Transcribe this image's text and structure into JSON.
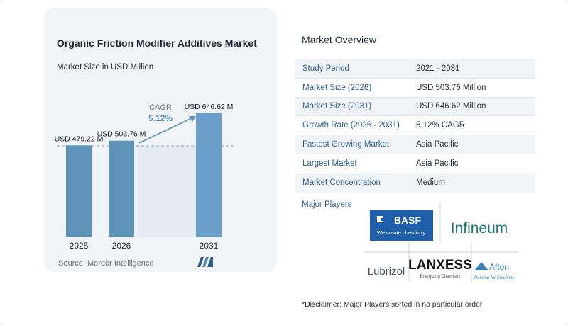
{
  "chart": {
    "title": "Organic Friction Modifier Additives Market",
    "subtitle": "Market Size in USD Million",
    "source": "Source: Mordor Intelligence",
    "cagr_label": "CAGR",
    "cagr_value": "5.12%"
  },
  "chart_data": {
    "type": "bar",
    "categories": [
      "2025",
      "2026",
      "2031"
    ],
    "values": [
      479.22,
      503.76,
      646.62
    ],
    "data_labels": [
      "USD 479.22 M",
      "USD 503.76 M",
      "USD 646.62 M"
    ],
    "title": "Organic Friction Modifier Additives Market",
    "subtitle": "Market Size in USD Million",
    "ylim": [
      0,
      700
    ],
    "grid": false,
    "colors": {
      "bar": "#5e92b8",
      "bar_highlight": "#6a9fca",
      "shade": "#e3eaf1",
      "arrow": "#5e92b8",
      "cagr": "#5e92b8"
    }
  },
  "overview": {
    "title": "Market Overview",
    "rows": [
      {
        "label": "Study Period",
        "value": "2021 - 2031"
      },
      {
        "label": "Market Size (2026)",
        "value": "USD 503.76 Million"
      },
      {
        "label": "Market Size (2031)",
        "value": "USD 646.62 Million"
      },
      {
        "label": "Growth Rate (2026 - 2031)",
        "value": "5.12% CAGR"
      },
      {
        "label": "Fastest Growing Market",
        "value": "Asia Pacific"
      },
      {
        "label": "Largest Market",
        "value": "Asia Pacific"
      },
      {
        "label": "Market Concentration",
        "value": "Medium"
      }
    ]
  },
  "players": {
    "label": "Major Players",
    "logos": [
      "BASF",
      "Infineum",
      "Lubrizol",
      "LANXESS",
      "Afton"
    ],
    "basf_tagline": "We create chemistry",
    "lanxess_tagline": "Energizing Chemistry",
    "afton_tagline": "Passion for Solutions"
  },
  "disclaimer": "*Disclaimer: Major Players sorted in no particular order",
  "colors": {
    "accent": "#2c5d8c",
    "bar": "#5e92b8",
    "basf": "#1f5faa"
  }
}
